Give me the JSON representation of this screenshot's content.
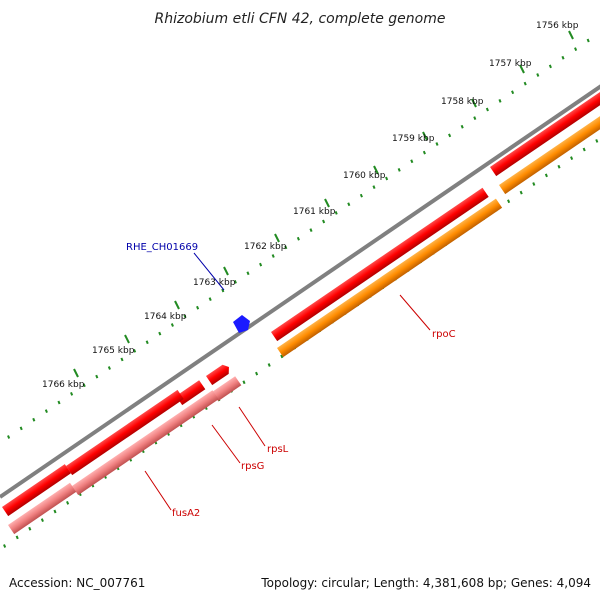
{
  "title": "Rhizobium etli CFN 42, complete genome",
  "ticks": [
    {
      "label": "1756 kbp"
    },
    {
      "label": "1757 kbp"
    },
    {
      "label": "1758 kbp"
    },
    {
      "label": "1759 kbp"
    },
    {
      "label": "1760 kbp"
    },
    {
      "label": "1761 kbp"
    },
    {
      "label": "1762 kbp"
    },
    {
      "label": "1763 kbp"
    },
    {
      "label": "1764 kbp"
    },
    {
      "label": "1765 kbp"
    },
    {
      "label": "1766 kbp"
    }
  ],
  "genes": [
    {
      "label": "RHE_CH01669",
      "color": "#0000cc"
    },
    {
      "label": "rpoC",
      "color": "#cc0000"
    },
    {
      "label": "rpsL",
      "color": "#cc0000"
    },
    {
      "label": "rpsG",
      "color": "#cc0000"
    },
    {
      "label": "fusA2",
      "color": "#cc0000"
    }
  ],
  "colors": {
    "backbone": "#808080",
    "cds_red": "#ff0000",
    "cds_orange": "#ff8c00",
    "cds_pink": "#f08080",
    "gc_dots": "#228b22"
  },
  "footer": {
    "accession": "Accession: NC_007761",
    "summary": "Topology: circular; Length: 4,381,608 bp; Genes: 4,094"
  }
}
